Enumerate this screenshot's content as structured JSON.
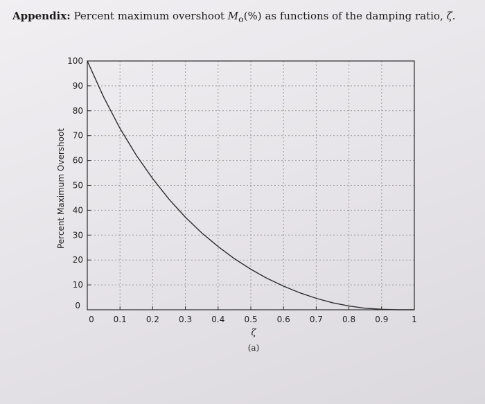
{
  "caption": {
    "prefix": "Appendix:",
    "text": "Percent maximum overshoot",
    "symbol": "M",
    "symbol_sub": "o",
    "unit": "(%)",
    "suffix": "as functions of the damping ratio,",
    "zeta": "ζ",
    "end": "."
  },
  "chart_data": {
    "type": "line",
    "xlabel": "ζ",
    "ylabel": "Percent Maximum Overshoot",
    "sublabel": "(a)",
    "xlim": [
      0,
      1
    ],
    "ylim": [
      0,
      100
    ],
    "grid": true,
    "x_ticks": [
      "0",
      "0.1",
      "0.2",
      "0.3",
      "0.4",
      "0.5",
      "0.6",
      "0.7",
      "0.8",
      "0.9",
      "1"
    ],
    "y_ticks": [
      "0",
      "10",
      "20",
      "30",
      "40",
      "50",
      "60",
      "70",
      "80",
      "90",
      "100"
    ],
    "series": [
      {
        "x": [
          0,
          0.05,
          0.1,
          0.15,
          0.2,
          0.25,
          0.3,
          0.35,
          0.4,
          0.45,
          0.5,
          0.55,
          0.6,
          0.65,
          0.7,
          0.75,
          0.8,
          0.85,
          0.9,
          0.95,
          1.0
        ],
        "values": [
          100,
          85.5,
          72.9,
          62.1,
          52.7,
          44.4,
          37.2,
          30.9,
          25.4,
          20.5,
          16.3,
          12.6,
          9.5,
          6.8,
          4.6,
          2.8,
          1.5,
          0.6,
          0.2,
          0.0,
          0
        ]
      }
    ]
  }
}
